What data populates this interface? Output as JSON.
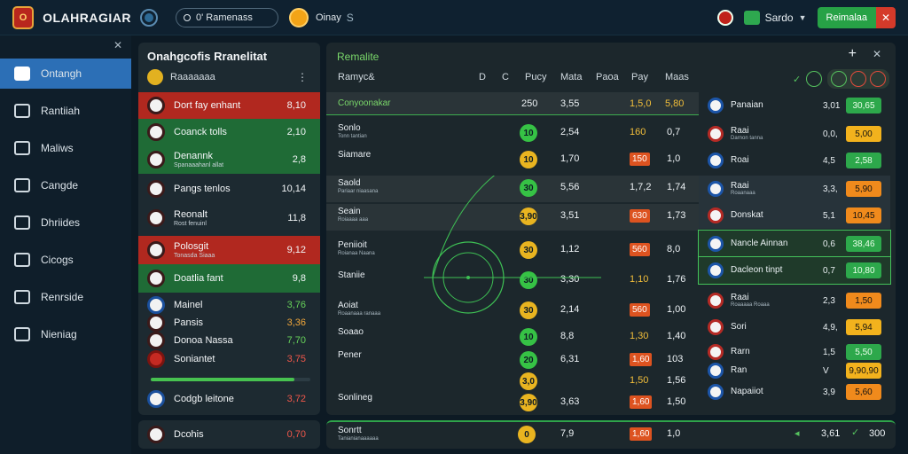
{
  "header": {
    "brand": "OLAHRAGIAR",
    "search_text": "0' Ramenass",
    "balance": "Oinay",
    "balance_b": "S",
    "wallet_label": "Sardo",
    "cta_label": "Reimalaa"
  },
  "sidebar": {
    "items": [
      {
        "label": "Ontangh",
        "icon": "soccer-icon"
      },
      {
        "label": "Rantiiah",
        "icon": "calendar-icon"
      },
      {
        "label": "Maliws",
        "icon": "music-icon"
      },
      {
        "label": "Cangde",
        "icon": "star-icon"
      },
      {
        "label": "Dhriides",
        "icon": "chart-icon"
      },
      {
        "label": "Cicogs",
        "icon": "ticket-icon"
      },
      {
        "label": "Renrside",
        "icon": "people-icon"
      },
      {
        "label": "Nieniag",
        "icon": "medal-icon"
      }
    ]
  },
  "left_panel": {
    "title": "Onahgcofis Rranelitat",
    "subtitle": "Raaaaaaa",
    "rows": [
      {
        "name": "Dort fay enhant",
        "sub": "",
        "value": "8,10",
        "style": "red",
        "vcolor": ""
      },
      {
        "name": "Coanck tolls",
        "sub": "",
        "value": "2,10",
        "style": "green",
        "vcolor": ""
      },
      {
        "name": "Denannk",
        "sub": "Spanaaahanl allat",
        "value": "2,8",
        "style": "green",
        "vcolor": ""
      },
      {
        "name": "Pangs tenlos",
        "sub": "",
        "value": "10,14",
        "style": "",
        "vcolor": ""
      },
      {
        "name": "Reonalt",
        "sub": "Rost fenuinl",
        "value": "11,8",
        "style": "",
        "vcolor": ""
      },
      {
        "name": "Polosgit",
        "sub": "Tonasda Siaaa",
        "value": "9,12",
        "style": "red",
        "vcolor": ""
      },
      {
        "name": "Doatlia fant",
        "sub": "",
        "value": "9,8",
        "style": "green",
        "vcolor": ""
      },
      {
        "name": "Mainel",
        "sub": "",
        "value": "3,76",
        "style": "",
        "vcolor": "g"
      },
      {
        "name": "Pansis",
        "sub": "",
        "value": "3,36",
        "style": "",
        "vcolor": "o"
      },
      {
        "name": "Donoa Nassa",
        "sub": "",
        "value": "7,70",
        "style": "",
        "vcolor": "g"
      },
      {
        "name": "Soniantet",
        "sub": "",
        "value": "3,75",
        "style": "",
        "vcolor": "r"
      },
      {
        "name": "Codgb leitone",
        "sub": "",
        "value": "3,72",
        "style": "",
        "vcolor": "r"
      }
    ],
    "progress": 0.9,
    "bottom": {
      "name": "Dcohis",
      "value": "0,70"
    }
  },
  "main": {
    "title": "Remalite",
    "columns": {
      "team": "Ramyc&",
      "c1": "D",
      "c2": "C",
      "c3": "Pucy",
      "c4": "Mata",
      "c5": "Paoa",
      "c6": "Pay",
      "c7": "Maas"
    },
    "section_label": "Conyoonakar",
    "section_vals": {
      "a": "250",
      "b": "3,55",
      "c": "1,5,0",
      "d": "5,80"
    },
    "rows": [
      {
        "label": "Sonlo",
        "sub": "Tonn tantian",
        "pill": "10",
        "pill_color": "g",
        "v1": "2,54",
        "v2": "160",
        "v2_chip": false,
        "v2y": true,
        "v3": "0,7",
        "band": false
      },
      {
        "label": "Siamare",
        "sub": "",
        "pill": "10",
        "pill_color": "y",
        "v1": "1,70",
        "v2": "150",
        "v2_chip": true,
        "v2y": false,
        "v3": "1,0",
        "band": false
      },
      {
        "label": "Saold",
        "sub": "Pariaar niaasana",
        "pill": "30",
        "pill_color": "g",
        "v1": "5,56",
        "v2": "1,7,2",
        "v2_chip": false,
        "v2y": false,
        "v3": "1,74",
        "band": true
      },
      {
        "label": "Seain",
        "sub": "Roiaaaa aaa",
        "pill": "3,90",
        "pill_color": "y",
        "v1": "3,51",
        "v2": "630",
        "v2_chip": true,
        "v2y": false,
        "v3": "1,73",
        "band": true
      },
      {
        "label": "Peniioit",
        "sub": "Roianaa Naana",
        "pill": "30",
        "pill_color": "y",
        "v1": "1,12",
        "v2": "560",
        "v2_chip": true,
        "v2y": false,
        "v3": "8,0",
        "band": false
      },
      {
        "label": "Staniie",
        "sub": "",
        "pill": "30",
        "pill_color": "g",
        "v1": "3,30",
        "v2": "1,10",
        "v2_chip": false,
        "v2y": true,
        "v3": "1,76",
        "band": false
      },
      {
        "label": "Aoiat",
        "sub": "Roaanaaa ranaaa",
        "pill": "30",
        "pill_color": "y",
        "v1": "2,14",
        "v2": "560",
        "v2_chip": true,
        "v2y": false,
        "v3": "1,00",
        "band": false
      },
      {
        "label": "Soaao",
        "sub": "",
        "pill": "10",
        "pill_color": "g",
        "v1": "8,8",
        "v2": "1,30",
        "v2_chip": false,
        "v2y": true,
        "v3": "1,40",
        "band": false
      },
      {
        "label": "Pener",
        "sub": "",
        "pill": "20",
        "pill_color": "g",
        "v1": "6,31",
        "v2": "1,60",
        "v2_chip": true,
        "v2y": false,
        "v3": "103",
        "band": false
      },
      {
        "label": "",
        "sub": "",
        "pill": "3,0",
        "pill_color": "y",
        "v1": "",
        "v2": "1,50",
        "v2_chip": false,
        "v2y": true,
        "v3": "1,56",
        "band": false
      },
      {
        "label": "Sonlineg",
        "sub": "",
        "pill": "3,90",
        "pill_color": "y",
        "v1": "3,63",
        "v2": "1,60",
        "v2_chip": true,
        "v2y": false,
        "v3": "1,50",
        "band": false
      }
    ],
    "bottom": {
      "label": "Sonrtt",
      "sub": "Tanianianaaaaaa",
      "pill": "0",
      "v1": "7,9",
      "v2": "1,60",
      "v3": "1,0",
      "r1": "3,61",
      "r2": "300"
    }
  },
  "right_list": {
    "rows": [
      {
        "name": "Panaian",
        "sub": "",
        "val": "3,01",
        "odd": "30,65",
        "odd_style": "green",
        "badge": "blue",
        "style": ""
      },
      {
        "name": "Raai",
        "sub": "Darnon tanna",
        "val": "0,0,",
        "odd": "5,00",
        "odd_style": "yellow",
        "badge": "red",
        "style": ""
      },
      {
        "name": "Roai",
        "sub": "",
        "val": "4,5",
        "odd": "2,58",
        "odd_style": "green",
        "badge": "blue",
        "style": ""
      },
      {
        "name": "Raai",
        "sub": "Roaanaaa",
        "val": "3,3,",
        "odd": "5,90",
        "odd_style": "orange",
        "badge": "blue",
        "style": "band"
      },
      {
        "name": "Donskat",
        "sub": "",
        "val": "5,1",
        "odd": "10,45",
        "odd_style": "orange",
        "badge": "red",
        "style": "band"
      },
      {
        "name": "Nancle Ainnan",
        "sub": "",
        "val": "0,6",
        "odd": "38,46",
        "odd_style": "green",
        "badge": "blue",
        "style": "hi"
      },
      {
        "name": "Dacleon tinpt",
        "sub": "",
        "val": "0,7",
        "odd": "10,80",
        "odd_style": "green",
        "badge": "blue",
        "style": "hi"
      },
      {
        "name": "Raai",
        "sub": "Roaaaaa Roaaa",
        "val": "2,3",
        "odd": "1,50",
        "odd_style": "orange",
        "badge": "red",
        "style": ""
      },
      {
        "name": "Sori",
        "sub": "",
        "val": "4,9,",
        "odd": "5,94",
        "odd_style": "yellow",
        "badge": "red",
        "style": ""
      },
      {
        "name": "Rarn",
        "sub": "",
        "val": "1,5",
        "odd": "5,50",
        "odd_style": "green",
        "badge": "red",
        "style": ""
      },
      {
        "name": "Ran",
        "sub": "",
        "val": "V",
        "odd": "9,90,90",
        "odd_style": "yellow",
        "badge": "blue",
        "style": ""
      },
      {
        "name": "Napaiiot",
        "sub": "",
        "val": "3,9",
        "odd": "5,60",
        "odd_style": "orange",
        "badge": "blue",
        "style": ""
      }
    ]
  }
}
